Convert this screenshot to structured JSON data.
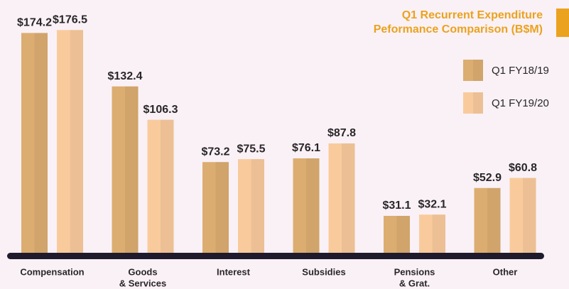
{
  "chart_data": {
    "type": "bar",
    "title": [
      "Q1 Recurrent Expenditure",
      "Peformance Comparison (B$M)"
    ],
    "categories": [
      [
        "Compensation"
      ],
      [
        "Goods",
        "& Services"
      ],
      [
        "Interest"
      ],
      [
        "Subsidies"
      ],
      [
        "Pensions",
        "& Grat."
      ],
      [
        "Other"
      ]
    ],
    "series": [
      {
        "name": "Q1 FY18/19",
        "color": "#dcad70",
        "values": [
          174.2,
          132.4,
          73.2,
          76.1,
          31.1,
          52.9
        ],
        "value_labels": [
          "$174.2",
          "$132.4",
          "$73.2",
          "$76.1",
          "$31.1",
          "$52.9"
        ]
      },
      {
        "name": "Q1 FY19/20",
        "color": "#f9cb9c",
        "values": [
          176.5,
          106.3,
          75.5,
          87.8,
          32.1,
          60.8
        ],
        "value_labels": [
          "$176.5",
          "$106.3",
          "$75.5",
          "$87.8",
          "$32.1",
          "$60.8"
        ]
      }
    ]
  }
}
